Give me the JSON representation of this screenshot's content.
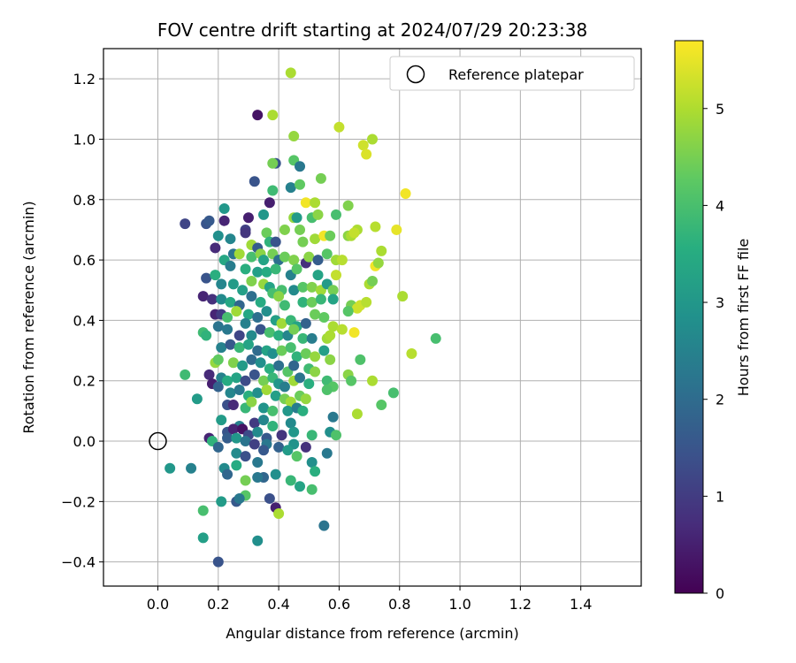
{
  "chart_data": {
    "type": "scatter",
    "title": "FOV centre drift starting at 2024/07/29 20:23:38",
    "xlabel": "Angular distance from reference (arcmin)",
    "ylabel": "Rotation from reference (arcmin)",
    "xlim": [
      -0.18,
      1.6
    ],
    "ylim": [
      -0.48,
      1.3
    ],
    "xticks": [
      "0.0",
      "0.2",
      "0.4",
      "0.6",
      "0.8",
      "1.0",
      "1.2",
      "1.4"
    ],
    "yticks": [
      "−0.4",
      "−0.2",
      "0.0",
      "0.2",
      "0.4",
      "0.6",
      "0.8",
      "1.0",
      "1.2"
    ],
    "grid": true,
    "legend": {
      "placement": "top-right",
      "entries": [
        "Reference platepar"
      ]
    },
    "reference_point": {
      "x": 0.0,
      "y": 0.0,
      "label": "Reference platepar"
    },
    "colorbar": {
      "label": "Hours from first FF file",
      "range": [
        0,
        5.7
      ],
      "ticks": [
        "0",
        "1",
        "2",
        "3",
        "4",
        "5"
      ],
      "colormap": "viridis"
    },
    "points": [
      [
        0.44,
        1.22,
        5.0
      ],
      [
        0.33,
        1.08,
        0.3
      ],
      [
        0.38,
        1.08,
        5.0
      ],
      [
        0.45,
        1.01,
        4.8
      ],
      [
        0.6,
        1.04,
        5.2
      ],
      [
        0.68,
        0.98,
        5.3
      ],
      [
        0.71,
        1.0,
        5.0
      ],
      [
        0.69,
        0.95,
        5.4
      ],
      [
        0.39,
        0.92,
        1.5
      ],
      [
        0.38,
        0.92,
        4.5
      ],
      [
        0.45,
        0.93,
        4.2
      ],
      [
        0.47,
        0.91,
        2.3
      ],
      [
        0.54,
        0.87,
        4.5
      ],
      [
        0.32,
        0.86,
        1.5
      ],
      [
        0.38,
        0.83,
        3.9
      ],
      [
        0.44,
        0.84,
        2.5
      ],
      [
        0.47,
        0.85,
        4.3
      ],
      [
        0.82,
        0.82,
        5.6
      ],
      [
        0.37,
        0.79,
        0.5
      ],
      [
        0.49,
        0.79,
        5.6
      ],
      [
        0.52,
        0.79,
        5.0
      ],
      [
        0.63,
        0.78,
        4.6
      ],
      [
        0.22,
        0.77,
        3.0
      ],
      [
        0.16,
        0.72,
        1.5
      ],
      [
        0.09,
        0.72,
        1.2
      ],
      [
        0.17,
        0.73,
        1.6
      ],
      [
        0.22,
        0.73,
        0.6
      ],
      [
        0.3,
        0.74,
        0.5
      ],
      [
        0.35,
        0.75,
        3.0
      ],
      [
        0.45,
        0.74,
        4.8
      ],
      [
        0.46,
        0.74,
        3.1
      ],
      [
        0.51,
        0.74,
        4.0
      ],
      [
        0.53,
        0.75,
        4.7
      ],
      [
        0.59,
        0.75,
        4.0
      ],
      [
        0.66,
        0.7,
        5.0
      ],
      [
        0.72,
        0.71,
        5.1
      ],
      [
        0.79,
        0.7,
        5.5
      ],
      [
        0.42,
        0.7,
        4.6
      ],
      [
        0.29,
        0.7,
        1.1
      ],
      [
        0.2,
        0.68,
        2.8
      ],
      [
        0.24,
        0.67,
        2.6
      ],
      [
        0.29,
        0.69,
        0.9
      ],
      [
        0.31,
        0.65,
        4.9
      ],
      [
        0.36,
        0.69,
        4.4
      ],
      [
        0.33,
        0.64,
        1.7
      ],
      [
        0.37,
        0.66,
        3.7
      ],
      [
        0.39,
        0.66,
        1.5
      ],
      [
        0.47,
        0.7,
        4.5
      ],
      [
        0.48,
        0.66,
        4.5
      ],
      [
        0.52,
        0.67,
        4.9
      ],
      [
        0.55,
        0.68,
        5.6
      ],
      [
        0.57,
        0.68,
        4.4
      ],
      [
        0.63,
        0.68,
        4.7
      ],
      [
        0.64,
        0.68,
        5.0
      ],
      [
        0.65,
        0.69,
        5.2
      ],
      [
        0.19,
        0.64,
        0.7
      ],
      [
        0.22,
        0.6,
        3.4
      ],
      [
        0.25,
        0.62,
        2.2
      ],
      [
        0.27,
        0.62,
        4.9
      ],
      [
        0.31,
        0.61,
        4.0
      ],
      [
        0.34,
        0.62,
        4.7
      ],
      [
        0.35,
        0.6,
        3.3
      ],
      [
        0.38,
        0.62,
        4.5
      ],
      [
        0.4,
        0.6,
        2.1
      ],
      [
        0.42,
        0.61,
        4.4
      ],
      [
        0.45,
        0.6,
        4.6
      ],
      [
        0.49,
        0.59,
        0.8
      ],
      [
        0.5,
        0.61,
        4.7
      ],
      [
        0.53,
        0.6,
        1.7
      ],
      [
        0.56,
        0.62,
        4.2
      ],
      [
        0.59,
        0.6,
        4.9
      ],
      [
        0.61,
        0.6,
        5.1
      ],
      [
        0.72,
        0.58,
        5.6
      ],
      [
        0.73,
        0.59,
        4.8
      ],
      [
        0.74,
        0.63,
        5.0
      ],
      [
        0.24,
        0.58,
        2.4
      ],
      [
        0.29,
        0.57,
        3.6
      ],
      [
        0.33,
        0.56,
        3.2
      ],
      [
        0.36,
        0.56,
        3.5
      ],
      [
        0.39,
        0.57,
        3.8
      ],
      [
        0.44,
        0.55,
        2.5
      ],
      [
        0.46,
        0.57,
        4.2
      ],
      [
        0.53,
        0.55,
        3.3
      ],
      [
        0.59,
        0.55,
        5.2
      ],
      [
        0.16,
        0.54,
        1.5
      ],
      [
        0.21,
        0.52,
        2.6
      ],
      [
        0.19,
        0.55,
        3.6
      ],
      [
        0.25,
        0.52,
        3.1
      ],
      [
        0.28,
        0.5,
        3.2
      ],
      [
        0.31,
        0.53,
        4.6
      ],
      [
        0.35,
        0.52,
        4.8
      ],
      [
        0.37,
        0.51,
        3.3
      ],
      [
        0.41,
        0.5,
        4.0
      ],
      [
        0.45,
        0.5,
        2.7
      ],
      [
        0.48,
        0.51,
        4.2
      ],
      [
        0.51,
        0.51,
        4.6
      ],
      [
        0.54,
        0.5,
        4.9
      ],
      [
        0.56,
        0.52,
        3.1
      ],
      [
        0.58,
        0.5,
        4.5
      ],
      [
        0.7,
        0.52,
        5.0
      ],
      [
        0.71,
        0.53,
        4.5
      ],
      [
        0.81,
        0.48,
        5.0
      ],
      [
        0.15,
        0.48,
        0.6
      ],
      [
        0.18,
        0.47,
        0.8
      ],
      [
        0.21,
        0.47,
        2.7
      ],
      [
        0.24,
        0.46,
        3.4
      ],
      [
        0.27,
        0.45,
        1.9
      ],
      [
        0.31,
        0.48,
        2.1
      ],
      [
        0.34,
        0.46,
        3.5
      ],
      [
        0.38,
        0.49,
        4.0
      ],
      [
        0.4,
        0.48,
        4.7
      ],
      [
        0.42,
        0.45,
        3.9
      ],
      [
        0.48,
        0.46,
        3.7
      ],
      [
        0.51,
        0.46,
        4.4
      ],
      [
        0.54,
        0.47,
        3.8
      ],
      [
        0.58,
        0.47,
        3.3
      ],
      [
        0.64,
        0.45,
        4.5
      ],
      [
        0.66,
        0.44,
        5.3
      ],
      [
        0.67,
        0.45,
        5.3
      ],
      [
        0.69,
        0.46,
        5.1
      ],
      [
        0.19,
        0.42,
        0.6
      ],
      [
        0.21,
        0.42,
        1.0
      ],
      [
        0.23,
        0.41,
        4.0
      ],
      [
        0.26,
        0.43,
        4.9
      ],
      [
        0.3,
        0.42,
        3.4
      ],
      [
        0.33,
        0.41,
        2.1
      ],
      [
        0.36,
        0.43,
        2.8
      ],
      [
        0.39,
        0.4,
        3.2
      ],
      [
        0.41,
        0.39,
        4.9
      ],
      [
        0.44,
        0.4,
        3.8
      ],
      [
        0.46,
        0.38,
        3.3
      ],
      [
        0.49,
        0.39,
        1.8
      ],
      [
        0.52,
        0.42,
        4.4
      ],
      [
        0.55,
        0.41,
        4.3
      ],
      [
        0.58,
        0.38,
        5.0
      ],
      [
        0.61,
        0.37,
        5.1
      ],
      [
        0.63,
        0.43,
        4.2
      ],
      [
        0.2,
        0.38,
        2.2
      ],
      [
        0.23,
        0.37,
        2.3
      ],
      [
        0.27,
        0.35,
        1.2
      ],
      [
        0.29,
        0.39,
        2.5
      ],
      [
        0.31,
        0.35,
        2.7
      ],
      [
        0.34,
        0.37,
        1.5
      ],
      [
        0.37,
        0.36,
        4.0
      ],
      [
        0.4,
        0.35,
        3.6
      ],
      [
        0.43,
        0.35,
        2.6
      ],
      [
        0.45,
        0.37,
        4.5
      ],
      [
        0.48,
        0.34,
        3.8
      ],
      [
        0.51,
        0.34,
        2.4
      ],
      [
        0.56,
        0.34,
        4.9
      ],
      [
        0.57,
        0.35,
        5.0
      ],
      [
        0.65,
        0.36,
        5.6
      ],
      [
        0.15,
        0.36,
        3.9
      ],
      [
        0.16,
        0.35,
        3.7
      ],
      [
        0.92,
        0.34,
        4.0
      ],
      [
        0.21,
        0.31,
        2.5
      ],
      [
        0.24,
        0.32,
        1.6
      ],
      [
        0.27,
        0.31,
        3.8
      ],
      [
        0.3,
        0.32,
        3.3
      ],
      [
        0.33,
        0.3,
        2.0
      ],
      [
        0.36,
        0.3,
        3.3
      ],
      [
        0.38,
        0.29,
        2.8
      ],
      [
        0.41,
        0.3,
        4.4
      ],
      [
        0.44,
        0.31,
        4.0
      ],
      [
        0.46,
        0.28,
        3.7
      ],
      [
        0.49,
        0.29,
        4.4
      ],
      [
        0.52,
        0.28,
        4.8
      ],
      [
        0.55,
        0.3,
        3.2
      ],
      [
        0.57,
        0.27,
        4.7
      ],
      [
        0.67,
        0.27,
        4.1
      ],
      [
        0.84,
        0.29,
        5.1
      ],
      [
        0.19,
        0.26,
        4.8
      ],
      [
        0.2,
        0.27,
        4.3
      ],
      [
        0.25,
        0.26,
        4.6
      ],
      [
        0.28,
        0.25,
        3.1
      ],
      [
        0.31,
        0.27,
        2.0
      ],
      [
        0.34,
        0.26,
        2.8
      ],
      [
        0.37,
        0.24,
        3.6
      ],
      [
        0.4,
        0.25,
        2.1
      ],
      [
        0.43,
        0.23,
        4.2
      ],
      [
        0.45,
        0.25,
        1.9
      ],
      [
        0.5,
        0.24,
        3.9
      ],
      [
        0.52,
        0.23,
        4.7
      ],
      [
        0.09,
        0.22,
        3.9
      ],
      [
        0.17,
        0.22,
        0.7
      ],
      [
        0.21,
        0.21,
        2.5
      ],
      [
        0.23,
        0.2,
        3.5
      ],
      [
        0.26,
        0.21,
        3.3
      ],
      [
        0.29,
        0.2,
        1.3
      ],
      [
        0.32,
        0.22,
        1.5
      ],
      [
        0.35,
        0.2,
        4.5
      ],
      [
        0.38,
        0.21,
        3.8
      ],
      [
        0.4,
        0.19,
        3.0
      ],
      [
        0.42,
        0.18,
        2.4
      ],
      [
        0.45,
        0.2,
        4.9
      ],
      [
        0.47,
        0.21,
        2.2
      ],
      [
        0.5,
        0.19,
        3.6
      ],
      [
        0.56,
        0.2,
        3.9
      ],
      [
        0.58,
        0.18,
        4.2
      ],
      [
        0.63,
        0.22,
        4.7
      ],
      [
        0.64,
        0.2,
        4.2
      ],
      [
        0.71,
        0.2,
        5.0
      ],
      [
        0.78,
        0.16,
        4.0
      ],
      [
        0.18,
        0.19,
        0.5
      ],
      [
        0.2,
        0.18,
        1.8
      ],
      [
        0.24,
        0.16,
        2.6
      ],
      [
        0.27,
        0.17,
        2.3
      ],
      [
        0.3,
        0.15,
        3.6
      ],
      [
        0.33,
        0.16,
        2.8
      ],
      [
        0.36,
        0.17,
        4.9
      ],
      [
        0.39,
        0.15,
        3.2
      ],
      [
        0.42,
        0.14,
        4.5
      ],
      [
        0.44,
        0.13,
        4.9
      ],
      [
        0.47,
        0.15,
        4.4
      ],
      [
        0.49,
        0.14,
        4.8
      ],
      [
        0.56,
        0.17,
        4.1
      ],
      [
        0.13,
        0.14,
        3.1
      ],
      [
        0.23,
        0.12,
        1.4
      ],
      [
        0.25,
        0.12,
        0.7
      ],
      [
        0.29,
        0.11,
        3.8
      ],
      [
        0.31,
        0.13,
        4.7
      ],
      [
        0.35,
        0.11,
        2.9
      ],
      [
        0.38,
        0.1,
        4.0
      ],
      [
        0.43,
        0.1,
        3.0
      ],
      [
        0.46,
        0.11,
        2.4
      ],
      [
        0.48,
        0.1,
        3.6
      ],
      [
        0.66,
        0.09,
        5.0
      ],
      [
        0.74,
        0.12,
        4.2
      ],
      [
        0.21,
        0.07,
        3.1
      ],
      [
        0.27,
        0.05,
        2.5
      ],
      [
        0.32,
        0.06,
        1.0
      ],
      [
        0.35,
        0.07,
        2.6
      ],
      [
        0.38,
        0.05,
        3.7
      ],
      [
        0.44,
        0.06,
        2.7
      ],
      [
        0.58,
        0.08,
        2.3
      ],
      [
        0.23,
        0.03,
        1.5
      ],
      [
        0.25,
        0.04,
        0.6
      ],
      [
        0.28,
        0.04,
        0.3
      ],
      [
        0.3,
        0.02,
        1.3
      ],
      [
        0.33,
        0.03,
        2.7
      ],
      [
        0.36,
        0.01,
        1.6
      ],
      [
        0.41,
        0.02,
        0.9
      ],
      [
        0.45,
        0.03,
        3.0
      ],
      [
        0.51,
        0.02,
        3.8
      ],
      [
        0.57,
        0.03,
        2.8
      ],
      [
        0.59,
        0.02,
        4.1
      ],
      [
        0.17,
        0.01,
        0.6
      ],
      [
        0.23,
        0.01,
        1.7
      ],
      [
        0.26,
        0.01,
        3.0
      ],
      [
        0.29,
        0.0,
        2.2
      ],
      [
        0.32,
        -0.01,
        1.1
      ],
      [
        0.36,
        -0.01,
        2.3
      ],
      [
        0.4,
        -0.02,
        1.8
      ],
      [
        0.45,
        -0.01,
        2.9
      ],
      [
        0.49,
        -0.02,
        0.8
      ],
      [
        0.18,
        0.0,
        3.7
      ],
      [
        0.04,
        -0.09,
        3.0
      ],
      [
        0.11,
        -0.09,
        2.5
      ],
      [
        0.2,
        -0.02,
        1.9
      ],
      [
        0.26,
        -0.04,
        2.7
      ],
      [
        0.29,
        -0.05,
        1.4
      ],
      [
        0.35,
        -0.03,
        1.6
      ],
      [
        0.43,
        -0.03,
        3.1
      ],
      [
        0.46,
        -0.05,
        4.2
      ],
      [
        0.51,
        -0.07,
        2.8
      ],
      [
        0.56,
        -0.04,
        2.3
      ],
      [
        0.52,
        -0.1,
        3.6
      ],
      [
        0.22,
        -0.09,
        2.7
      ],
      [
        0.23,
        -0.11,
        1.9
      ],
      [
        0.26,
        -0.08,
        3.5
      ],
      [
        0.33,
        -0.07,
        2.3
      ],
      [
        0.35,
        -0.12,
        1.9
      ],
      [
        0.29,
        -0.13,
        4.5
      ],
      [
        0.33,
        -0.12,
        2.3
      ],
      [
        0.39,
        -0.11,
        2.8
      ],
      [
        0.44,
        -0.13,
        3.8
      ],
      [
        0.47,
        -0.15,
        3.3
      ],
      [
        0.51,
        -0.16,
        4.0
      ],
      [
        0.29,
        -0.18,
        4.2
      ],
      [
        0.26,
        -0.2,
        1.6
      ],
      [
        0.27,
        -0.19,
        2.3
      ],
      [
        0.37,
        -0.19,
        1.4
      ],
      [
        0.21,
        -0.2,
        3.1
      ],
      [
        0.39,
        -0.22,
        0.5
      ],
      [
        0.4,
        -0.24,
        5.0
      ],
      [
        0.15,
        -0.23,
        4.0
      ],
      [
        0.55,
        -0.28,
        2.2
      ],
      [
        0.15,
        -0.32,
        3.2
      ],
      [
        0.33,
        -0.33,
        2.8
      ],
      [
        0.2,
        -0.4,
        1.5
      ]
    ]
  }
}
